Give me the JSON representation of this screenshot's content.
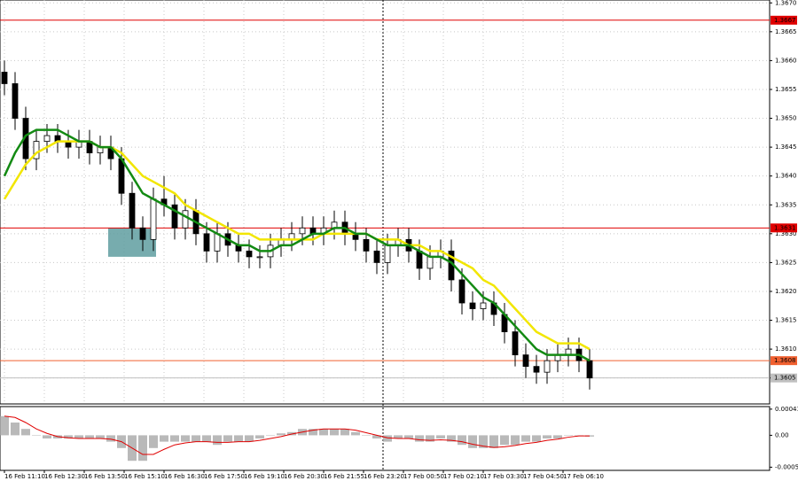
{
  "chart_data": {
    "type": "candlestick",
    "x_labels": [
      "16 Feb 11:10",
      "16 Feb 12:30",
      "16 Feb 13:50",
      "16 Feb 15:10",
      "16 Feb 16:30",
      "16 Feb 17:50",
      "16 Feb 19:10",
      "16 Feb 20:30",
      "16 Feb 21:55",
      "16 Feb 23:20",
      "17 Feb 00:50",
      "17 Feb 02:10",
      "17 Feb 03:30",
      "17 Feb 04:50",
      "17 Feb 06:10"
    ],
    "open": [
      1.3658,
      1.3656,
      1.365,
      1.3643,
      1.3646,
      1.3647,
      1.3646,
      1.3645,
      1.3646,
      1.3644,
      1.3645,
      1.3643,
      1.3637,
      1.3631,
      1.3629,
      1.3636,
      1.3635,
      1.3631,
      1.3634,
      1.363,
      1.3627,
      1.363,
      1.3628,
      1.3627,
      1.3626,
      1.3626,
      1.3628,
      1.3629,
      1.363,
      1.3631,
      1.363,
      1.3631,
      1.3632,
      1.363,
      1.3629,
      1.3627,
      1.3625,
      1.3628,
      1.3629,
      1.3627,
      1.3624,
      1.3626,
      1.3627,
      1.3622,
      1.3618,
      1.3617,
      1.3618,
      1.3616,
      1.3613,
      1.3609,
      1.3607,
      1.3606,
      1.3608,
      1.3609,
      1.361,
      1.3608
    ],
    "high": [
      1.366,
      1.3658,
      1.3652,
      1.3648,
      1.3649,
      1.3649,
      1.3648,
      1.3648,
      1.3648,
      1.3647,
      1.3647,
      1.3645,
      1.3639,
      1.3633,
      1.3638,
      1.364,
      1.3637,
      1.3636,
      1.3636,
      1.3632,
      1.3632,
      1.3632,
      1.363,
      1.3629,
      1.3628,
      1.363,
      1.3631,
      1.3632,
      1.3633,
      1.3633,
      1.3633,
      1.3634,
      1.3634,
      1.3632,
      1.3631,
      1.3629,
      1.363,
      1.3631,
      1.3631,
      1.3629,
      1.3628,
      1.3629,
      1.3629,
      1.3624,
      1.362,
      1.362,
      1.362,
      1.3618,
      1.3615,
      1.3611,
      1.3609,
      1.361,
      1.3611,
      1.3612,
      1.3612,
      1.361
    ],
    "low": [
      1.3654,
      1.3648,
      1.3641,
      1.3641,
      1.3644,
      1.3644,
      1.3643,
      1.3643,
      1.3642,
      1.3642,
      1.3641,
      1.3635,
      1.3629,
      1.3627,
      1.3627,
      1.3633,
      1.3629,
      1.3629,
      1.3628,
      1.3625,
      1.3625,
      1.3626,
      1.3625,
      1.3624,
      1.3624,
      1.3624,
      1.3626,
      1.3627,
      1.3628,
      1.3628,
      1.3628,
      1.3629,
      1.3628,
      1.3627,
      1.3625,
      1.3623,
      1.3623,
      1.3626,
      1.3625,
      1.3622,
      1.3622,
      1.3624,
      1.362,
      1.3616,
      1.3615,
      1.3615,
      1.3614,
      1.3611,
      1.3607,
      1.3605,
      1.3604,
      1.3604,
      1.3606,
      1.3607,
      1.3606,
      1.3603
    ],
    "close": [
      1.3656,
      1.365,
      1.3643,
      1.3646,
      1.3647,
      1.3646,
      1.3645,
      1.3646,
      1.3644,
      1.3645,
      1.3643,
      1.3637,
      1.3631,
      1.3629,
      1.3636,
      1.3635,
      1.3631,
      1.3634,
      1.363,
      1.3627,
      1.363,
      1.3628,
      1.3627,
      1.3626,
      1.3626,
      1.3628,
      1.3629,
      1.363,
      1.3631,
      1.363,
      1.3631,
      1.3632,
      1.363,
      1.3629,
      1.3627,
      1.3625,
      1.3628,
      1.3629,
      1.3627,
      1.3624,
      1.3626,
      1.3627,
      1.3622,
      1.3618,
      1.3617,
      1.3618,
      1.3616,
      1.3613,
      1.3609,
      1.3607,
      1.3606,
      1.3608,
      1.3609,
      1.361,
      1.3608,
      1.3605
    ],
    "series": [
      {
        "color": "#f2e600",
        "values": [
          1.3636,
          1.3639,
          1.3642,
          1.3644,
          1.3645,
          1.3646,
          1.3646,
          1.3646,
          1.3646,
          1.3645,
          1.3645,
          1.3644,
          1.3642,
          1.364,
          1.3639,
          1.3638,
          1.3637,
          1.3635,
          1.3634,
          1.3633,
          1.3632,
          1.3631,
          1.363,
          1.363,
          1.3629,
          1.3629,
          1.3629,
          1.3629,
          1.3629,
          1.3629,
          1.363,
          1.363,
          1.363,
          1.363,
          1.363,
          1.3629,
          1.3629,
          1.3629,
          1.3628,
          1.3628,
          1.3627,
          1.3627,
          1.3626,
          1.3625,
          1.3624,
          1.3622,
          1.3621,
          1.3619,
          1.3617,
          1.3615,
          1.3613,
          1.3612,
          1.3611,
          1.3611,
          1.3611,
          1.361
        ]
      },
      {
        "color": "#138a13",
        "values": [
          1.364,
          1.3644,
          1.3647,
          1.3648,
          1.3648,
          1.3648,
          1.3647,
          1.3646,
          1.3646,
          1.3645,
          1.3645,
          1.3643,
          1.364,
          1.3637,
          1.3636,
          1.3635,
          1.3634,
          1.3633,
          1.3632,
          1.3631,
          1.363,
          1.3629,
          1.3628,
          1.3628,
          1.3627,
          1.3627,
          1.3628,
          1.3628,
          1.3629,
          1.363,
          1.363,
          1.3631,
          1.3631,
          1.363,
          1.363,
          1.3629,
          1.3628,
          1.3628,
          1.3628,
          1.3627,
          1.3626,
          1.3626,
          1.3625,
          1.3623,
          1.3621,
          1.3619,
          1.3618,
          1.3616,
          1.3614,
          1.3612,
          1.361,
          1.3609,
          1.3609,
          1.3609,
          1.3609,
          1.3608
        ]
      }
    ],
    "ylim": [
      1.36005,
      1.36705
    ],
    "yticks": [
      {
        "value": 1.367,
        "label": "1.3670"
      },
      {
        "value": 1.3665,
        "label": "1.3665"
      },
      {
        "value": 1.366,
        "label": "1.3660"
      },
      {
        "value": 1.3655,
        "label": "1.3655"
      },
      {
        "value": 1.365,
        "label": "1.3650"
      },
      {
        "value": 1.3645,
        "label": "1.3645"
      },
      {
        "value": 1.364,
        "label": "1.3640"
      },
      {
        "value": 1.3635,
        "label": "1.3635"
      },
      {
        "value": 1.363,
        "label": "1.3630"
      },
      {
        "value": 1.3625,
        "label": "1.3625"
      },
      {
        "value": 1.362,
        "label": "1.3620"
      },
      {
        "value": 1.3615,
        "label": "1.3615"
      },
      {
        "value": 1.361,
        "label": "1.3610"
      },
      {
        "value": 1.3605,
        "label": "1.3605"
      }
    ],
    "grid": true,
    "levels": [
      {
        "value": 1.3667,
        "label": "1.3667",
        "color": "#e00000"
      },
      {
        "value": 1.3631,
        "label": "1.3631",
        "color": "#e00000"
      },
      {
        "value": 1.3608,
        "label": "1.3608",
        "color": "#f06030"
      },
      {
        "value": 1.3605,
        "label": "1.3605",
        "color": "#c0c0c0"
      }
    ],
    "highlight": {
      "from": 10,
      "to": 14,
      "top": 1.3631,
      "bottom": 1.3626,
      "color": "#5f9ea0"
    },
    "indicator": {
      "type": "bar",
      "color": "#a8a8a8",
      "values": [
        0.0003,
        0.0002,
        0.0001,
        0.0,
        -5e-05,
        -5e-05,
        -5e-05,
        -5e-05,
        -5e-05,
        -5e-05,
        -0.0001,
        -0.0002,
        -0.0004,
        -0.0004,
        -0.0002,
        -0.0001,
        -0.0001,
        -0.0001,
        -0.0001,
        -0.0001,
        -0.00015,
        -0.0001,
        -0.0001,
        -0.0001,
        -5e-05,
        0,
        3e-05,
        5e-05,
        0.0001,
        0.0001,
        0.0001,
        0.0001,
        0.0001,
        5e-05,
        0,
        -5e-05,
        -0.0001,
        -5e-05,
        -5e-05,
        -0.0001,
        -0.0001,
        -5e-05,
        -0.0001,
        -0.00015,
        -0.0002,
        -0.0002,
        -0.0002,
        -0.00015,
        -0.00015,
        -0.0001,
        -0.0001,
        -5e-05,
        -5e-05,
        0,
        0,
        -2e-05
      ],
      "signal": {
        "color": "#e00000",
        "values": [
          0.0003,
          0.00028,
          0.0002,
          0.0001,
          3e-05,
          -2e-05,
          -4e-05,
          -5e-05,
          -5e-05,
          -5e-05,
          -6e-05,
          -0.0001,
          -0.0002,
          -0.0003,
          -0.0003,
          -0.00022,
          -0.00015,
          -0.00012,
          -0.0001,
          -0.0001,
          -0.00011,
          -0.00011,
          -0.0001,
          -0.0001,
          -8e-05,
          -5e-05,
          -2e-05,
          2e-05,
          5e-05,
          8e-05,
          0.0001,
          0.0001,
          0.0001,
          8e-05,
          4e-05,
          0,
          -4e-05,
          -5e-05,
          -5e-05,
          -7e-05,
          -8e-05,
          -7e-05,
          -8e-05,
          -0.0001,
          -0.00014,
          -0.00017,
          -0.00019,
          -0.00018,
          -0.00016,
          -0.00013,
          -0.00011,
          -8e-05,
          -6e-05,
          -3e-05,
          -1e-05,
          -1e-05
        ]
      },
      "ylim": [
        -0.00055,
        0.00045
      ],
      "yticks": [
        0.00041,
        {
          "value": 0,
          "label": "0.00"
        },
        -0.0005
      ]
    }
  }
}
